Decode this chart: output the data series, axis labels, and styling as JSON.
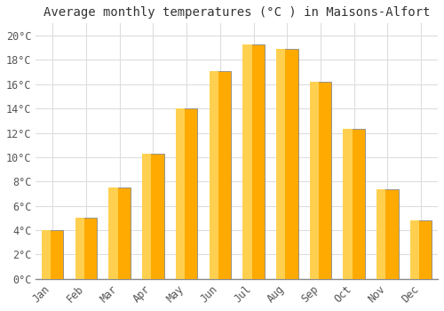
{
  "months": [
    "Jan",
    "Feb",
    "Mar",
    "Apr",
    "May",
    "Jun",
    "Jul",
    "Aug",
    "Sep",
    "Oct",
    "Nov",
    "Dec"
  ],
  "temperatures": [
    4.0,
    5.0,
    7.5,
    10.3,
    14.0,
    17.1,
    19.3,
    18.9,
    16.2,
    12.3,
    7.4,
    4.8
  ],
  "bar_color_main": "#FFAA00",
  "bar_color_light": "#FFD050",
  "bar_edge_color": "#888888",
  "title": "Average monthly temperatures (°C ) in Maisons-Alfort",
  "ylim": [
    0,
    21
  ],
  "yticks": [
    0,
    2,
    4,
    6,
    8,
    10,
    12,
    14,
    16,
    18,
    20
  ],
  "ytick_labels": [
    "0°C",
    "2°C",
    "4°C",
    "6°C",
    "8°C",
    "10°C",
    "12°C",
    "14°C",
    "16°C",
    "18°C",
    "20°C"
  ],
  "bg_color": "#FFFFFF",
  "grid_color": "#DDDDDD",
  "title_fontsize": 10,
  "tick_fontsize": 8.5
}
